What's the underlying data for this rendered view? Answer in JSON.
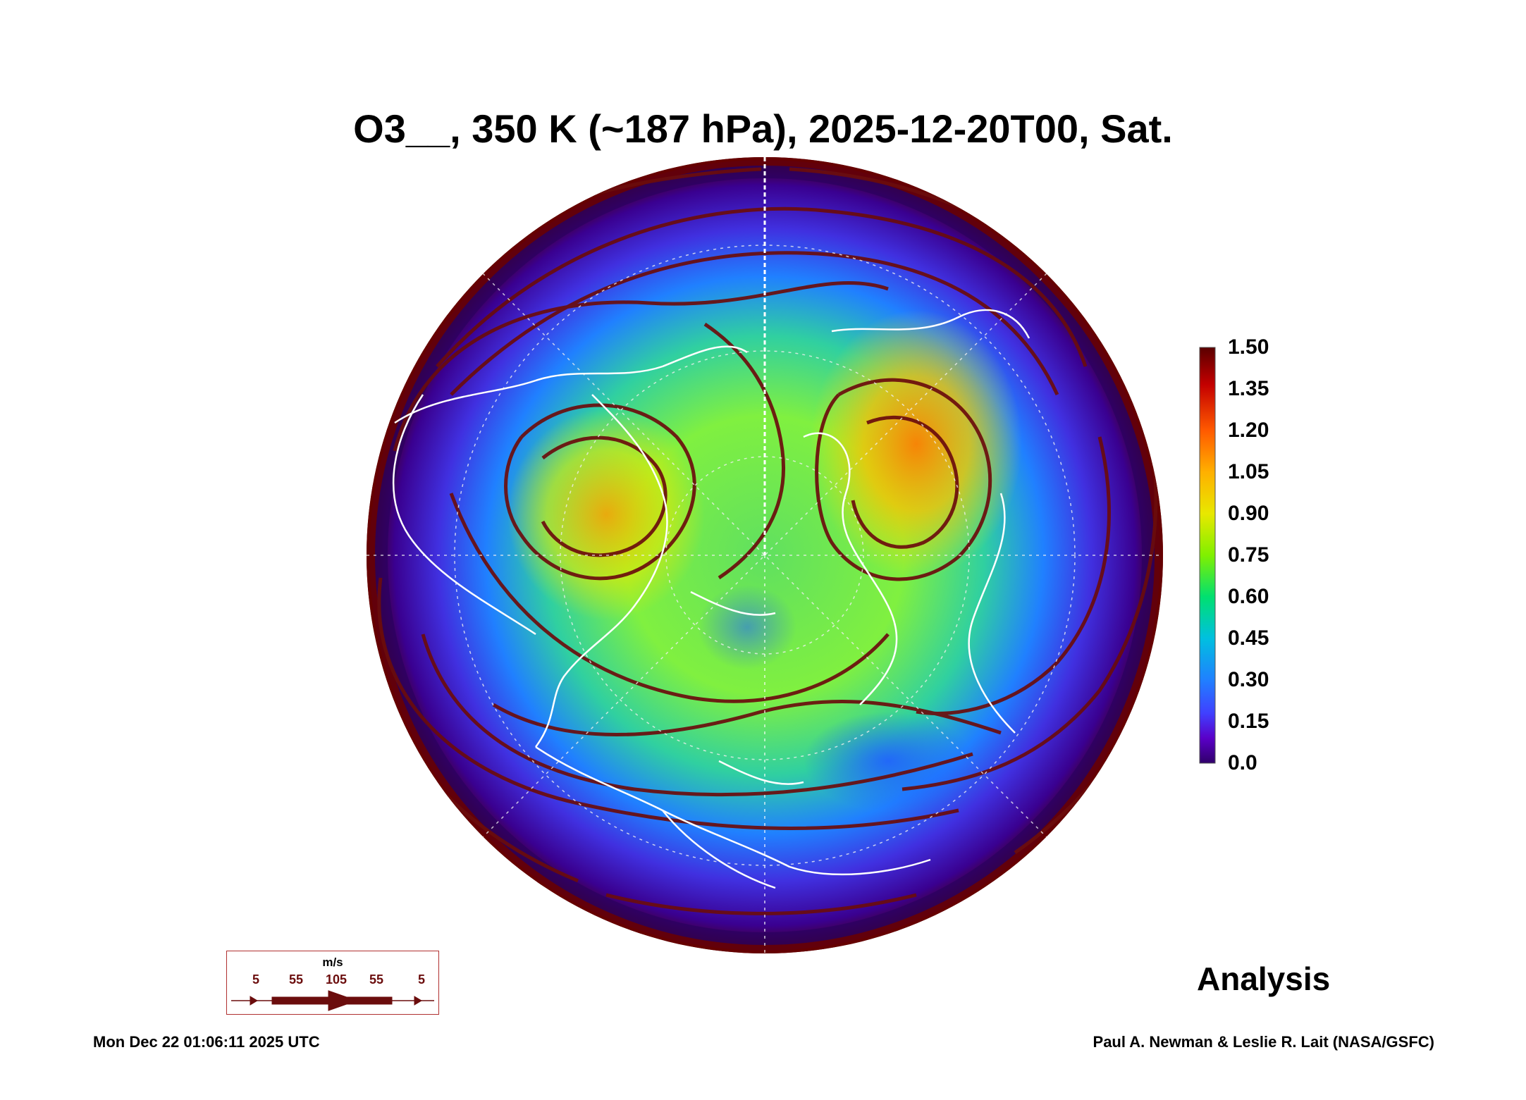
{
  "title": "O3__, 350 K (~187 hPa), 2025-12-20T00, Sat.",
  "colorbar": {
    "labels": [
      "1.50",
      "1.35",
      "1.20",
      "1.05",
      "0.90",
      "0.75",
      "0.60",
      "0.45",
      "0.30",
      "0.15",
      "0.0"
    ],
    "colors": [
      "#5a0000",
      "#c40000",
      "#ff5a00",
      "#ffb000",
      "#e8e800",
      "#80f000",
      "#00e070",
      "#00c0e0",
      "#2080ff",
      "#4040ff",
      "#5a00c8",
      "#30006a"
    ]
  },
  "wind_key": {
    "unit": "m/s",
    "values": [
      "5",
      "55",
      "105",
      "55",
      "5"
    ],
    "arrow_color": "#6b0d0d"
  },
  "analysis_label": "Analysis",
  "timestamp": "Mon Dec 22 01:06:11 2025 UTC",
  "credit": "Paul A. Newman & Leslie R. Lait (NASA/GSFC)"
}
